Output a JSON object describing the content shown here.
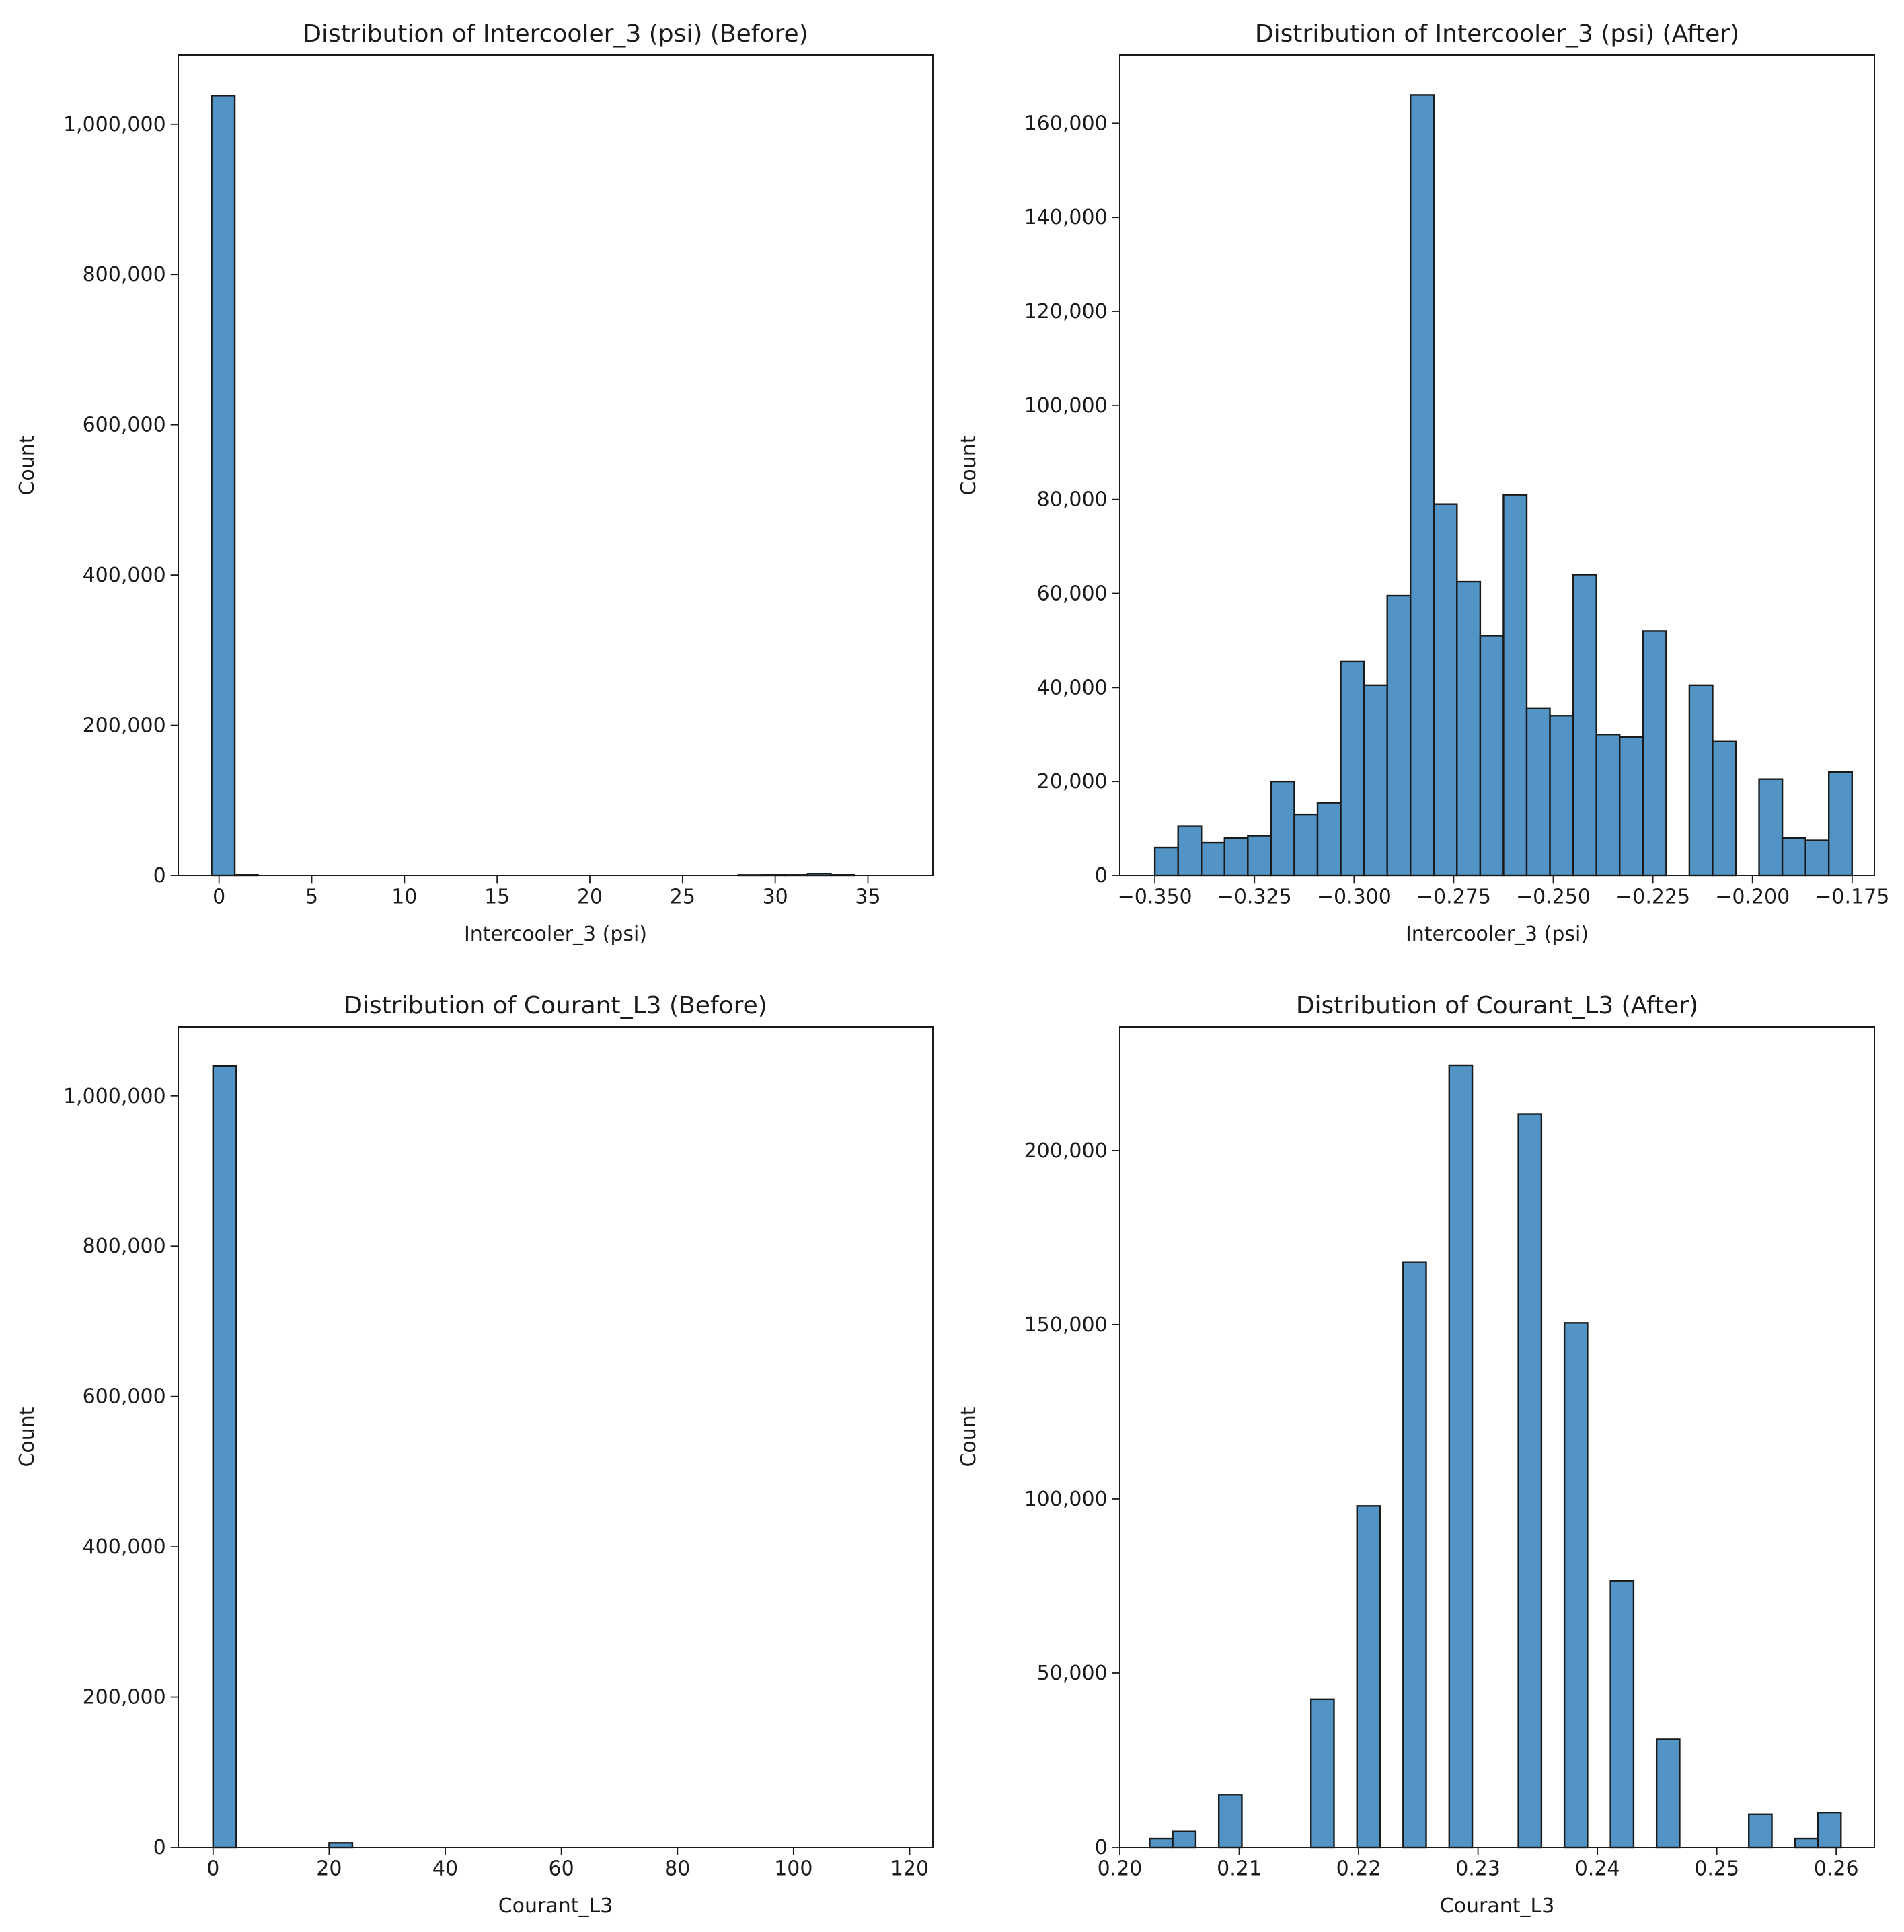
{
  "colors": {
    "bar": "#5194c5",
    "edge": "#1a1a1a",
    "axis": "#1a1a1a"
  },
  "chart_data": [
    {
      "type": "bar",
      "title": "Distribution of Intercooler_3 (psi) (Before)",
      "xlabel": "Intercooler_3 (psi)",
      "ylabel": "Count",
      "xlim": [
        -2.2,
        38.5
      ],
      "ylim": [
        0,
        1092000
      ],
      "xticks": [
        0,
        5,
        10,
        15,
        20,
        25,
        30,
        35
      ],
      "xtick_labels": [
        "0",
        "5",
        "10",
        "15",
        "20",
        "25",
        "30",
        "35"
      ],
      "yticks": [
        0,
        200000,
        400000,
        600000,
        800000,
        1000000
      ],
      "ytick_labels": [
        "0",
        "200,000",
        "400,000",
        "600,000",
        "800,000",
        "1,000,000"
      ],
      "bars": [
        {
          "x0": -0.4,
          "x1": 0.85,
          "value": 1038000
        },
        {
          "x0": 0.85,
          "x1": 2.1,
          "value": 1200
        },
        {
          "x0": 28.0,
          "x1": 29.25,
          "value": 600
        },
        {
          "x0": 29.25,
          "x1": 30.5,
          "value": 900
        },
        {
          "x0": 30.5,
          "x1": 31.75,
          "value": 700
        },
        {
          "x0": 31.75,
          "x1": 33.0,
          "value": 2500
        },
        {
          "x0": 33.0,
          "x1": 34.25,
          "value": 800
        }
      ]
    },
    {
      "type": "bar",
      "title": "Distribution of Intercooler_3 (psi) (After)",
      "xlabel": "Intercooler_3 (psi)",
      "ylabel": "Count",
      "xlim": [
        -0.3588,
        -0.1694
      ],
      "ylim": [
        0,
        174500
      ],
      "xticks": [
        -0.35,
        -0.325,
        -0.3,
        -0.275,
        -0.25,
        -0.225,
        -0.2,
        -0.175
      ],
      "xtick_labels": [
        "−0.350",
        "−0.325",
        "−0.300",
        "−0.275",
        "−0.250",
        "−0.225",
        "−0.200",
        "−0.175"
      ],
      "yticks": [
        0,
        20000,
        40000,
        60000,
        80000,
        100000,
        120000,
        140000,
        160000
      ],
      "ytick_labels": [
        "0",
        "20,000",
        "40,000",
        "60,000",
        "80,000",
        "100,000",
        "120,000",
        "140,000",
        "160,000"
      ],
      "bin_start": -0.35,
      "bin_width": 0.005833,
      "values": [
        6000,
        10500,
        7000,
        8000,
        8500,
        20000,
        13000,
        15500,
        45500,
        40500,
        59500,
        166000,
        79000,
        62500,
        51000,
        81000,
        35500,
        34000,
        64000,
        30000,
        29500,
        52000,
        0,
        40500,
        28500,
        0,
        20500,
        8000,
        7500,
        22000
      ]
    },
    {
      "type": "bar",
      "title": "Distribution of Courant_L3 (Before)",
      "xlabel": "Courant_L3",
      "ylabel": "Count",
      "xlim": [
        -6.0,
        124.0
      ],
      "ylim": [
        0,
        1092000
      ],
      "xticks": [
        0,
        20,
        40,
        60,
        80,
        100,
        120
      ],
      "xtick_labels": [
        "0",
        "20",
        "40",
        "60",
        "80",
        "100",
        "120"
      ],
      "yticks": [
        0,
        200000,
        400000,
        600000,
        800000,
        1000000
      ],
      "ytick_labels": [
        "0",
        "200,000",
        "400,000",
        "600,000",
        "800,000",
        "1,000,000"
      ],
      "bars": [
        {
          "x0": 0.0,
          "x1": 4.0,
          "value": 1040000
        },
        {
          "x0": 20.0,
          "x1": 24.0,
          "value": 6000
        }
      ]
    },
    {
      "type": "bar",
      "title": "Distribution of Courant_L3 (After)",
      "xlabel": "Courant_L3",
      "ylabel": "Count",
      "xlim": [
        0.2,
        0.2632
      ],
      "ylim": [
        0,
        235500
      ],
      "xticks": [
        0.2,
        0.21,
        0.22,
        0.23,
        0.24,
        0.25,
        0.26
      ],
      "xtick_labels": [
        "0.20",
        "0.21",
        "0.22",
        "0.23",
        "0.24",
        "0.25",
        "0.26"
      ],
      "yticks": [
        0,
        50000,
        100000,
        150000,
        200000
      ],
      "ytick_labels": [
        "0",
        "50,000",
        "100,000",
        "150,000",
        "200,000"
      ],
      "bin_start": 0.2025,
      "bin_width": 0.00193,
      "values": [
        2500,
        4500,
        0,
        15000,
        0,
        0,
        0,
        42500,
        0,
        98000,
        0,
        168000,
        0,
        224500,
        0,
        0,
        210500,
        0,
        150500,
        0,
        76500,
        0,
        31000,
        0,
        0,
        0,
        9500,
        0,
        2500,
        10000
      ]
    }
  ]
}
